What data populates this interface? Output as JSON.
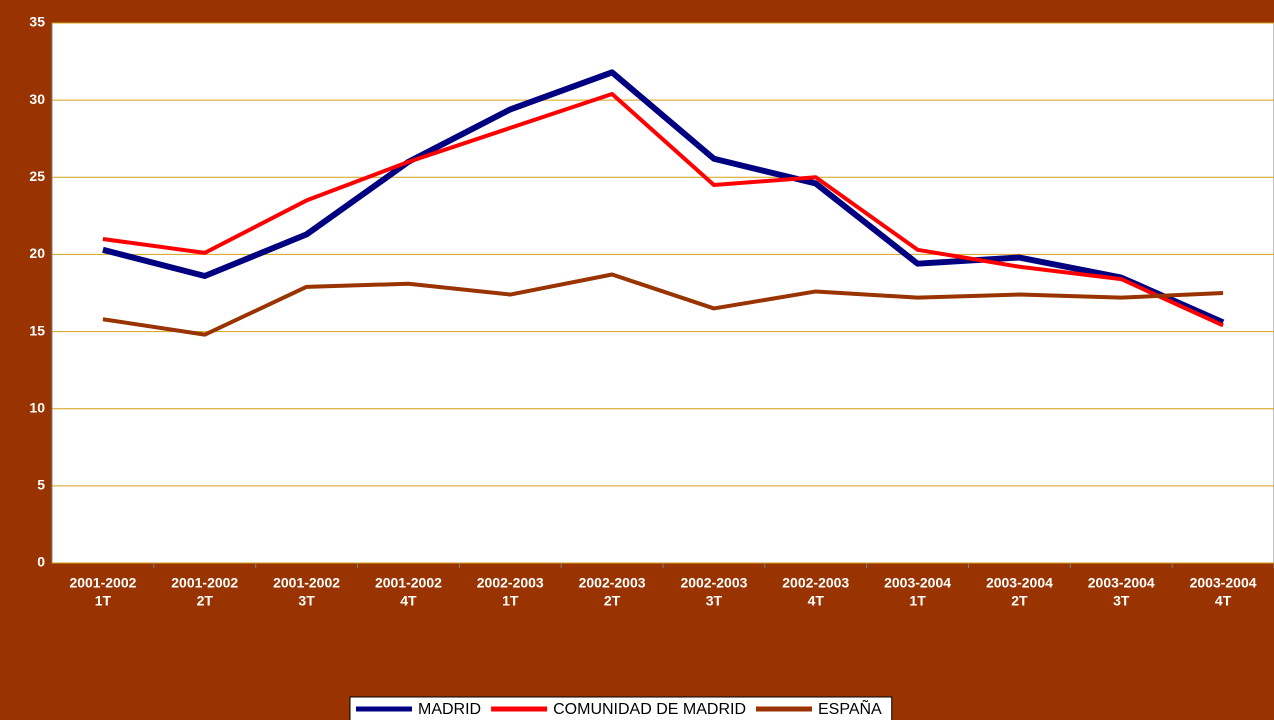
{
  "chart_data": {
    "type": "line",
    "categories": [
      [
        "2001-2002",
        "1T"
      ],
      [
        "2001-2002",
        "2T"
      ],
      [
        "2001-2002",
        "3T"
      ],
      [
        "2001-2002",
        "4T"
      ],
      [
        "2002-2003",
        "1T"
      ],
      [
        "2002-2003",
        "2T"
      ],
      [
        "2002-2003",
        "3T"
      ],
      [
        "2002-2003",
        "4T"
      ],
      [
        "2003-2004",
        "1T"
      ],
      [
        "2003-2004",
        "2T"
      ],
      [
        "2003-2004",
        "3T"
      ],
      [
        "2003-2004",
        "4T"
      ]
    ],
    "series": [
      {
        "name": "MADRID",
        "color": "#000080",
        "values": [
          20.3,
          18.6,
          21.3,
          26.0,
          29.4,
          31.8,
          26.2,
          24.6,
          19.4,
          19.8,
          18.5,
          15.6
        ]
      },
      {
        "name": "COMUNIDAD DE MADRID",
        "color": "#ff0000",
        "values": [
          21.0,
          20.1,
          23.5,
          26.0,
          28.2,
          30.4,
          24.5,
          25.0,
          20.3,
          19.2,
          18.4,
          15.4
        ]
      },
      {
        "name": "ESPAÑA",
        "color": "#993300",
        "values": [
          15.8,
          14.8,
          17.9,
          18.1,
          17.4,
          18.7,
          16.5,
          17.6,
          17.2,
          17.4,
          17.2,
          17.5
        ]
      }
    ],
    "ylim": [
      0,
      35
    ],
    "yticks": [
      0,
      5,
      10,
      15,
      20,
      25,
      30,
      35
    ],
    "grid": true,
    "legend": "bottom"
  }
}
